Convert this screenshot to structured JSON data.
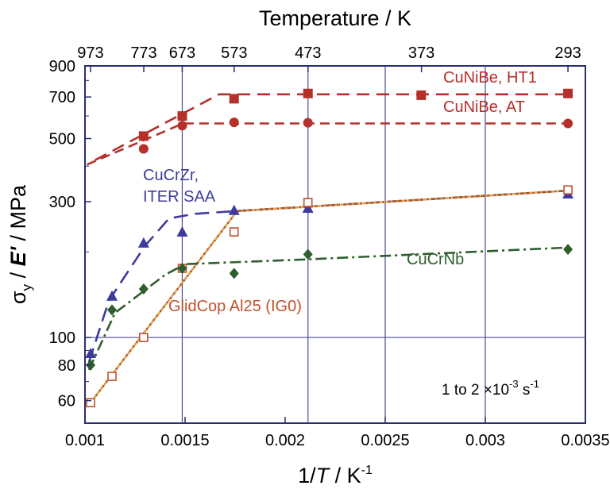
{
  "chart_data": {
    "type": "scatter",
    "title_top": "Temperature / K",
    "xlabel": {
      "pre": "1/",
      "italic": "T",
      "post": " / K",
      "sup": "-1"
    },
    "ylabel": {
      "sigma": "σ",
      "sub": "y",
      "sep": " / ",
      "italic": "E'",
      "post": " / MPa"
    },
    "x_scale": "linear",
    "y_scale": "log",
    "xlim": [
      0.001,
      0.0035
    ],
    "ylim": [
      50,
      900
    ],
    "x_ticks": [
      {
        "v": 0.001,
        "label": "0.001"
      },
      {
        "v": 0.0015,
        "label": "0.0015"
      },
      {
        "v": 0.002,
        "label": "0.002"
      },
      {
        "v": 0.0025,
        "label": "0.0025"
      },
      {
        "v": 0.003,
        "label": "0.003"
      },
      {
        "v": 0.0035,
        "label": "0.0035"
      }
    ],
    "y_ticks": [
      {
        "v": 60,
        "label": "60"
      },
      {
        "v": 80,
        "label": "80"
      },
      {
        "v": 100,
        "label": "100"
      },
      {
        "v": 300,
        "label": "300"
      },
      {
        "v": 500,
        "label": "500"
      },
      {
        "v": 700,
        "label": "700"
      },
      {
        "v": 900,
        "label": "900"
      }
    ],
    "top_ticks": [
      {
        "v": 0.0010277,
        "label": "973"
      },
      {
        "v": 0.0012937,
        "label": "773"
      },
      {
        "v": 0.0014859,
        "label": "673"
      },
      {
        "v": 0.0017452,
        "label": "573"
      },
      {
        "v": 0.0021142,
        "label": "473"
      },
      {
        "v": 0.002681,
        "label": "373"
      },
      {
        "v": 0.003413,
        "label": "293"
      }
    ],
    "vgrid": [
      0.0014859,
      0.0021142,
      0.0025,
      0.003
    ],
    "hgrid": [
      100
    ],
    "annotation": {
      "text": "1 to 2 ×10",
      "sup": "-3",
      "unit": " s",
      "unit_sup": "-1"
    },
    "series": [
      {
        "name": "CuNiBe, HT1",
        "color": "#b5302a",
        "marker": "square-filled",
        "points": [
          [
            0.001293,
            510
          ],
          [
            0.001486,
            600
          ],
          [
            0.001745,
            690
          ],
          [
            0.002114,
            720
          ],
          [
            0.00268,
            710
          ],
          [
            0.003413,
            720
          ]
        ],
        "fit": [
          [
            0.00105,
            420
          ],
          [
            0.00167,
            715
          ],
          [
            0.003413,
            715
          ]
        ],
        "dash": "16,9"
      },
      {
        "name": "CuNiBe, AT",
        "color": "#b5302a",
        "marker": "circle-filled",
        "points": [
          [
            0.001293,
            460
          ],
          [
            0.001486,
            555
          ],
          [
            0.001745,
            570
          ],
          [
            0.002114,
            568
          ],
          [
            0.003413,
            565
          ]
        ],
        "fit": [
          [
            0.00101,
            405
          ],
          [
            0.00149,
            565
          ],
          [
            0.003413,
            565
          ]
        ],
        "dash": "12,7"
      },
      {
        "name": "CuCrZr,\nITER SAA",
        "color": "#3f3b9e",
        "marker": "triangle-filled",
        "points": [
          [
            0.001028,
            88
          ],
          [
            0.001135,
            140
          ],
          [
            0.001293,
            215
          ],
          [
            0.001486,
            235
          ],
          [
            0.001745,
            280
          ],
          [
            0.002114,
            285
          ],
          [
            0.003413,
            320
          ]
        ],
        "fit": [
          [
            0.00102,
            82
          ],
          [
            0.00112,
            135
          ],
          [
            0.0013,
            210
          ],
          [
            0.00142,
            262
          ],
          [
            0.00155,
            272
          ],
          [
            0.00175,
            278
          ],
          [
            0.003413,
            328
          ]
        ],
        "dash": "18,9"
      },
      {
        "name": "GlidCop Al25 (IG0)",
        "color": "#c0502a",
        "marker": "square-open",
        "points": [
          [
            0.001028,
            59
          ],
          [
            0.001135,
            73
          ],
          [
            0.001293,
            100
          ],
          [
            0.001486,
            175
          ],
          [
            0.001745,
            235
          ],
          [
            0.002114,
            298
          ],
          [
            0.003413,
            330
          ]
        ],
        "fit": [
          [
            0.00102,
            58
          ],
          [
            0.00176,
            278
          ],
          [
            0.003413,
            328
          ]
        ],
        "dash": "3,4",
        "fit_overlay_color": "#d6a02a"
      },
      {
        "name": "CuCrNb",
        "color": "#2e5e2e",
        "marker": "diamond-filled",
        "points": [
          [
            0.001028,
            80
          ],
          [
            0.001135,
            125
          ],
          [
            0.001293,
            148
          ],
          [
            0.001486,
            175
          ],
          [
            0.001745,
            168
          ],
          [
            0.002114,
            196
          ],
          [
            0.003413,
            204
          ]
        ],
        "fit": [
          [
            0.00102,
            77
          ],
          [
            0.00115,
            122
          ],
          [
            0.0014,
            166
          ],
          [
            0.0015,
            181
          ],
          [
            0.0021,
            188
          ],
          [
            0.003413,
            207
          ]
        ],
        "dash": "14,5,3,5"
      }
    ],
    "series_labels": [
      {
        "series": 0,
        "text": "CuNiBe, HT1"
      },
      {
        "series": 1,
        "text": "CuNiBe, AT"
      },
      {
        "series": 2,
        "text": "CuCrZr,"
      },
      {
        "series": 2,
        "text": "ITER SAA"
      },
      {
        "series": 3,
        "text": "GlidCop Al25 (IG0)"
      },
      {
        "series": 4,
        "text": "CuCrNb"
      }
    ]
  }
}
